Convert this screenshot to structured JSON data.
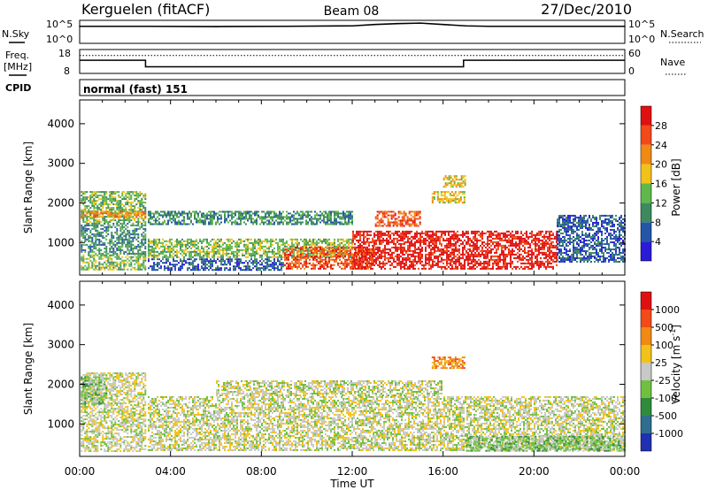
{
  "header": {
    "station": "Kerguelen (fitACF)",
    "beam": "Beam 08",
    "date": "27/Dec/2010"
  },
  "noise_panel": {
    "left_label": "N.Sky",
    "right_label": "N.Search",
    "ticks": [
      "10^5",
      "10^0"
    ]
  },
  "freq_panel": {
    "left_label_line1": "Freq.",
    "left_label_line2": "[MHz]",
    "left_ticks": [
      "18",
      "8"
    ],
    "right_label": "Nave",
    "right_ticks": [
      "60",
      "0"
    ]
  },
  "cpid_panel": {
    "label": "CPID",
    "value": "normal (fast) 151"
  },
  "chart_data": [
    {
      "type": "line",
      "title": "N.Sky / N.Search",
      "x": [
        0,
        3,
        6,
        9,
        12,
        13,
        14,
        15,
        16,
        17,
        18,
        21,
        24
      ],
      "series": [
        {
          "name": "N.Sky",
          "values": [
            3.7,
            3.7,
            3.65,
            3.7,
            3.8,
            4.1,
            4.3,
            4.4,
            4.1,
            3.8,
            3.7,
            3.7,
            3.7
          ]
        }
      ],
      "xlim": [
        0,
        24
      ],
      "ylim": [
        0,
        5
      ]
    },
    {
      "type": "line",
      "title": "Freq. / Nave",
      "x": [
        0,
        2.9,
        2.9,
        16.9,
        16.9,
        24
      ],
      "series": [
        {
          "name": "Freq.",
          "values": [
            13.5,
            13.5,
            10.8,
            10.8,
            13.5,
            13.5
          ]
        }
      ],
      "nave_level": 45,
      "xlim": [
        0,
        24
      ],
      "ylim": [
        8,
        18
      ]
    },
    {
      "type": "heatmap",
      "quantity": "Power",
      "xlabel": "",
      "ylabel": "Slant Range [km]",
      "yticks": [
        "1000",
        "2000",
        "3000",
        "4000"
      ],
      "ylim": [
        180,
        4600
      ],
      "xlim": [
        0,
        24
      ],
      "colorbar_label": "Power [dB]",
      "colorbar_ticks": [
        "4",
        "8",
        "12",
        "16",
        "20",
        "24",
        "28"
      ],
      "colors": [
        "#2a1bd6",
        "#2456a8",
        "#3d8a5e",
        "#5fb84a",
        "#f2c21a",
        "#f08a14",
        "#f24a18",
        "#e01010"
      ],
      "bands": [
        {
          "t0": 0.05,
          "t1": 2.9,
          "r0": 300,
          "r1": 700,
          "level": 3
        },
        {
          "t0": 0.05,
          "t1": 2.9,
          "r0": 700,
          "r1": 1500,
          "level": 2
        },
        {
          "t0": 0.05,
          "t1": 2.9,
          "r0": 1500,
          "r1": 2300,
          "level": 3
        },
        {
          "t0": 0.05,
          "t1": 2.9,
          "r0": 1600,
          "r1": 1800,
          "level": 5
        },
        {
          "t0": 3.0,
          "t1": 12,
          "r0": 600,
          "r1": 1100,
          "level": 3
        },
        {
          "t0": 3.0,
          "t1": 12,
          "r0": 1450,
          "r1": 1800,
          "level": 2
        },
        {
          "t0": 3.0,
          "t1": 9,
          "r0": 300,
          "r1": 600,
          "level": 1
        },
        {
          "t0": 9,
          "t1": 13,
          "r0": 300,
          "r1": 900,
          "level": 6
        },
        {
          "t0": 12,
          "t1": 21,
          "r0": 300,
          "r1": 1300,
          "level": 7
        },
        {
          "t0": 13,
          "t1": 15,
          "r0": 1400,
          "r1": 1800,
          "level": 6
        },
        {
          "t0": 15.5,
          "t1": 17,
          "r0": 2000,
          "r1": 2300,
          "level": 4
        },
        {
          "t0": 16,
          "t1": 17,
          "r0": 2400,
          "r1": 2700,
          "level": 4
        },
        {
          "t0": 21,
          "t1": 24,
          "r0": 500,
          "r1": 1700,
          "level": 1
        }
      ]
    },
    {
      "type": "heatmap",
      "quantity": "Velocity",
      "xlabel": "Time UT",
      "ylabel": "Slant Range [km]",
      "xticks": [
        "00:00",
        "04:00",
        "08:00",
        "12:00",
        "16:00",
        "20:00",
        "00:00"
      ],
      "yticks": [
        "1000",
        "2000",
        "3000",
        "4000"
      ],
      "ylim": [
        180,
        4600
      ],
      "xlim": [
        0,
        24
      ],
      "colorbar_label": "Velocity [m s",
      "colorbar_unit_exponent": "-1",
      "colorbar_ticks": [
        "1000",
        "500",
        "100",
        "25",
        "-25",
        "-100",
        "-500",
        "-1000"
      ],
      "colors": [
        "#2030b0",
        "#2e6e8e",
        "#2e8b3e",
        "#70c040",
        "#c8c8c8",
        "#f2c21a",
        "#f08a14",
        "#f24a18",
        "#e01010"
      ],
      "bands": [
        {
          "t0": 0.05,
          "t1": 2.9,
          "r0": 300,
          "r1": 2300,
          "level": 4
        },
        {
          "t0": 0.05,
          "t1": 1.2,
          "r0": 1500,
          "r1": 2200,
          "level": 3
        },
        {
          "t0": 3.0,
          "t1": 24,
          "r0": 300,
          "r1": 1700,
          "level": 4
        },
        {
          "t0": 6,
          "t1": 16,
          "r0": 1700,
          "r1": 2100,
          "level": 4
        },
        {
          "t0": 15.5,
          "t1": 17,
          "r0": 2400,
          "r1": 2700,
          "level": 6
        },
        {
          "t0": 17,
          "t1": 24,
          "r0": 300,
          "r1": 700,
          "level": 3
        }
      ]
    }
  ]
}
